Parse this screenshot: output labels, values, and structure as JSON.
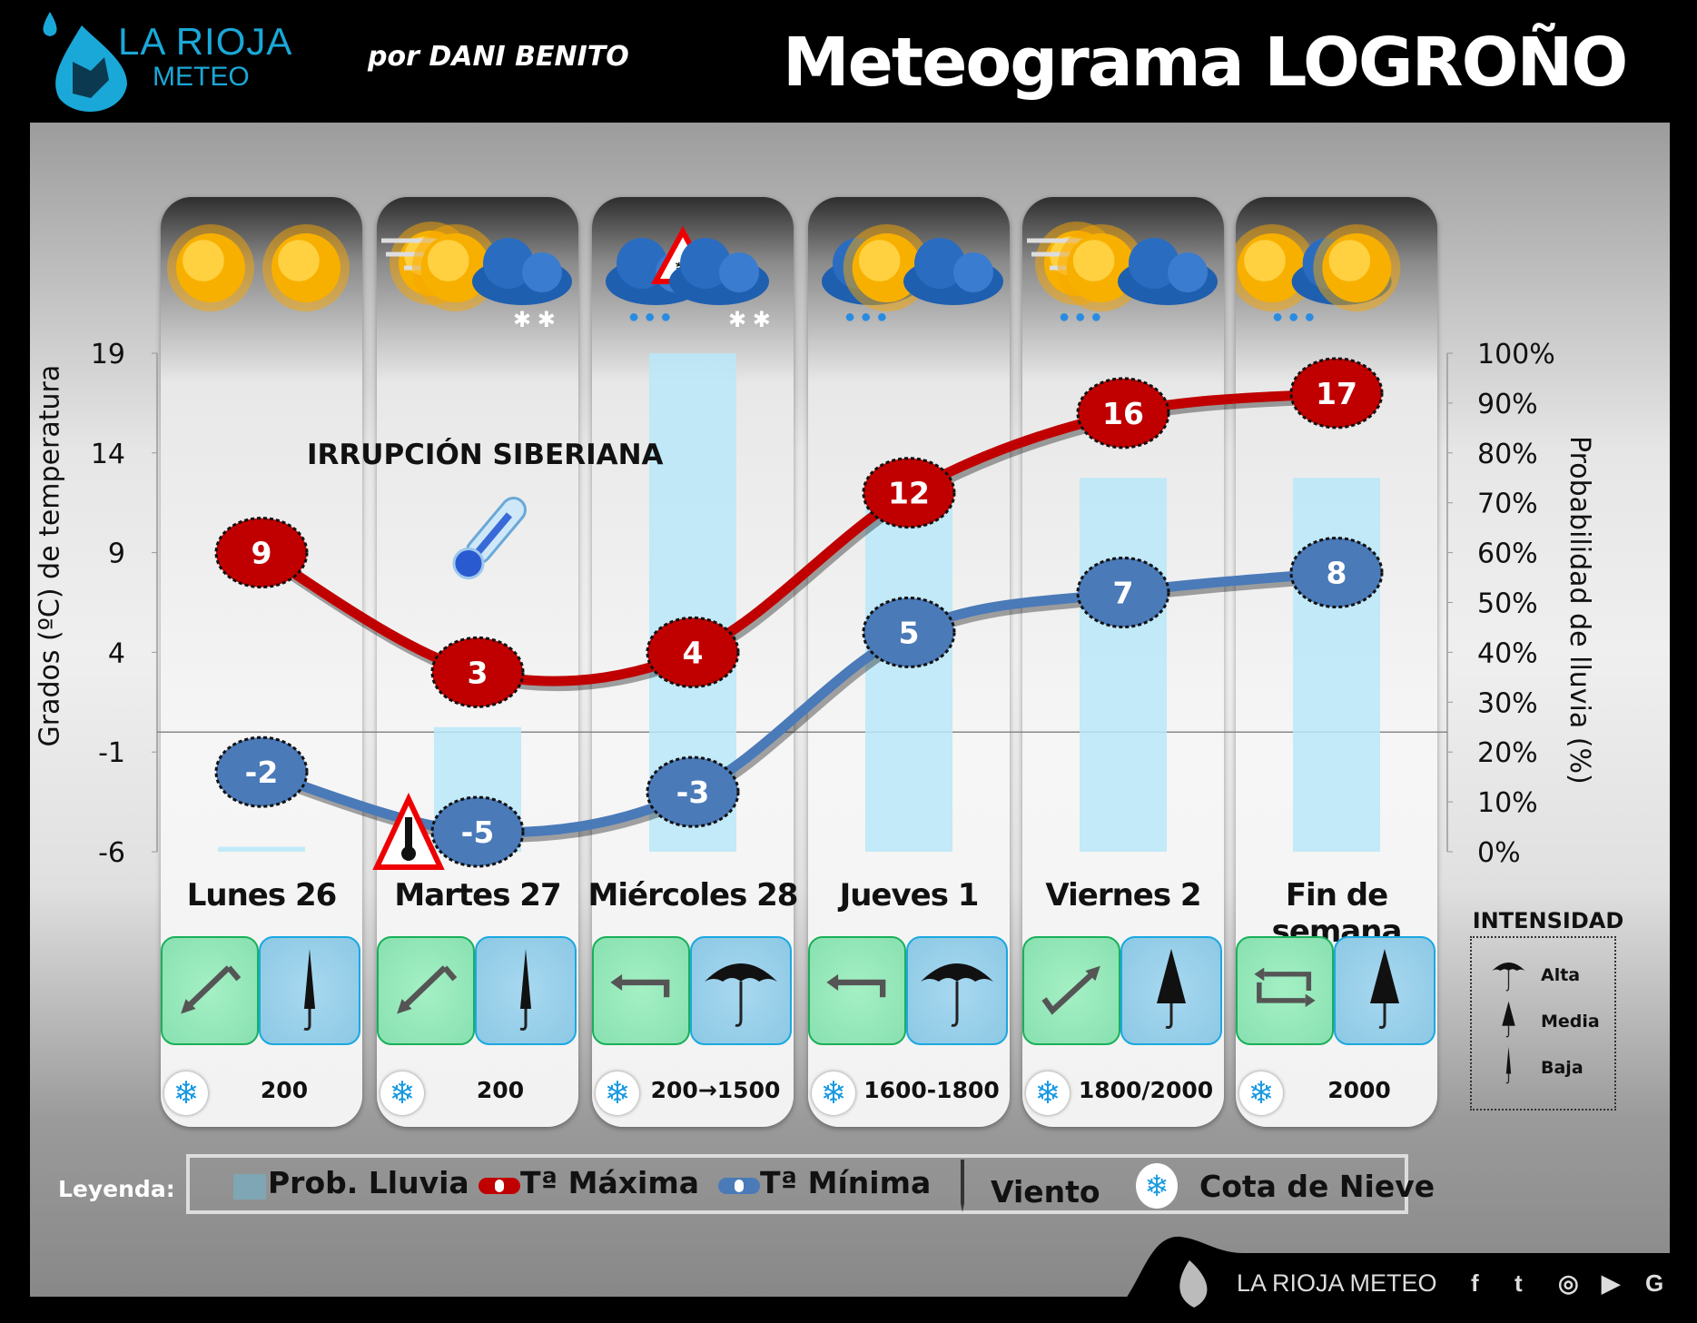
{
  "header": {
    "logo_line1": "LA RIOJA",
    "logo_line2": "METEO",
    "byline": "por DANI BENITO",
    "title": "Meteograma LOGROÑO"
  },
  "annotation": "IRRUPCIÓN SIBERIANA",
  "days": [
    {
      "label": "Lunes 26",
      "weather_icons": [
        "sun",
        "sun"
      ],
      "wind": "arrow-southwest",
      "rain_intensity": "Baja",
      "snow_level": "200"
    },
    {
      "label": "Martes 27",
      "weather_icons": [
        "sun-fog",
        "sun",
        "cloud",
        "snow"
      ],
      "wind": "arrow-southwest",
      "rain_intensity": "Baja",
      "snow_level": "200"
    },
    {
      "label": "Miércoles 28",
      "weather_icons": [
        "cloud",
        "snow-warning",
        "cloud",
        "snow",
        "rain"
      ],
      "wind": "arrow-west",
      "rain_intensity": "Alta",
      "snow_level": "200→1500"
    },
    {
      "label": "Jueves 1",
      "weather_icons": [
        "cloud",
        "sun",
        "cloud",
        "rain"
      ],
      "wind": "arrow-west",
      "rain_intensity": "Alta",
      "snow_level": "1600-1800"
    },
    {
      "label": "Viernes 2",
      "weather_icons": [
        "sun-fog",
        "sun",
        "cloud",
        "rain"
      ],
      "wind": "arrow-northeast",
      "rain_intensity": "Media",
      "snow_level": "1800/2000"
    },
    {
      "label": "Fin de semana",
      "weather_icons": [
        "sun",
        "cloud",
        "sun",
        "rain"
      ],
      "wind": "variable",
      "rain_intensity": "Media",
      "snow_level": "2000"
    }
  ],
  "intensity": {
    "title": "INTENSIDAD",
    "levels": [
      "Alta",
      "Media",
      "Baja"
    ]
  },
  "legend": {
    "title": "Leyenda:",
    "items": [
      "Prob. Lluvia",
      "Tª Máxima",
      "Tª Mínima",
      "Viento",
      "Cota de Nieve"
    ]
  },
  "footer": {
    "brand": "LA RIOJA METEO",
    "social": [
      "f",
      "t",
      "ig",
      "yt",
      "G"
    ]
  },
  "colors": {
    "max": "#c00000",
    "min": "#4a7ab8",
    "rain": "#b8e8f8"
  },
  "chart_data": {
    "type": "line",
    "categories": [
      "Lunes 26",
      "Martes 27",
      "Miércoles 28",
      "Jueves 1",
      "Viernes 2",
      "Fin de semana"
    ],
    "series": [
      {
        "name": "Tª Máxima",
        "values": [
          9,
          3,
          4,
          12,
          16,
          17
        ]
      },
      {
        "name": "Tª Mínima",
        "values": [
          -2,
          -5,
          -3,
          5,
          7,
          8
        ]
      },
      {
        "name": "Prob. Lluvia",
        "type": "bar",
        "axis": "right",
        "values": [
          1,
          25,
          100,
          70,
          75,
          75
        ]
      }
    ],
    "ylabel": "Grados (ºC) de temperatura",
    "ylabel_right": "Probabilidad de lluvia (%)",
    "ylim": [
      -6,
      19
    ],
    "ylim_right": [
      0,
      100
    ],
    "yticks": [
      "19",
      "14",
      "9",
      "4",
      "-1",
      "-6"
    ],
    "yticks_right": [
      "100%",
      "90%",
      "80%",
      "70%",
      "60%",
      "50%",
      "40%",
      "30%",
      "20%",
      "10%",
      "0%"
    ]
  }
}
